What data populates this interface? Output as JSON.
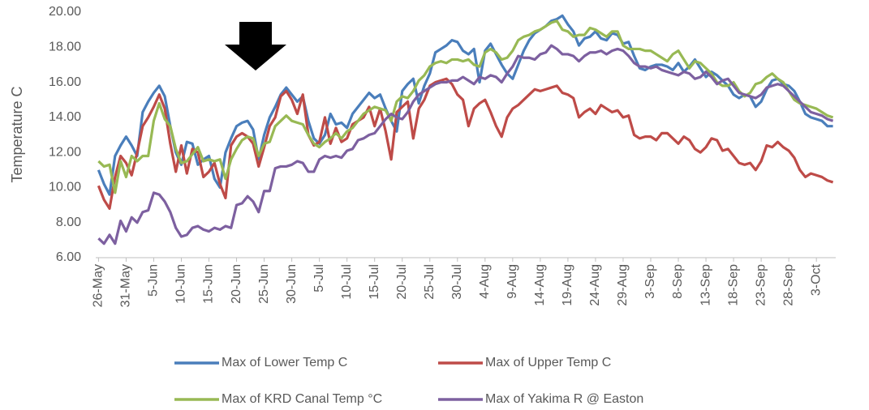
{
  "chart_data": {
    "type": "line",
    "y_label": "Temperature C",
    "categories": [
      "26-May",
      null,
      null,
      null,
      null,
      "31-May",
      null,
      null,
      null,
      null,
      "5-Jun",
      null,
      null,
      null,
      null,
      "10-Jun",
      null,
      null,
      null,
      null,
      "15-Jun",
      null,
      null,
      null,
      null,
      "20-Jun",
      null,
      null,
      null,
      null,
      "25-Jun",
      null,
      null,
      null,
      null,
      "30-Jun",
      null,
      null,
      null,
      null,
      "5-Jul",
      null,
      null,
      null,
      null,
      "10-Jul",
      null,
      null,
      null,
      null,
      "15-Jul",
      null,
      null,
      null,
      null,
      "20-Jul",
      null,
      null,
      null,
      null,
      "25-Jul",
      null,
      null,
      null,
      null,
      "30-Jul",
      null,
      null,
      null,
      null,
      "4-Aug",
      null,
      null,
      null,
      null,
      "9-Aug",
      null,
      null,
      null,
      null,
      "14-Aug",
      null,
      null,
      null,
      null,
      "19-Aug",
      null,
      null,
      null,
      null,
      "24-Aug",
      null,
      null,
      null,
      null,
      "29-Aug",
      null,
      null,
      null,
      null,
      "3-Sep",
      null,
      null,
      null,
      null,
      "8-Sep",
      null,
      null,
      null,
      null,
      "13-Sep",
      null,
      null,
      null,
      null,
      "18-Sep",
      null,
      null,
      null,
      null,
      "23-Sep",
      null,
      null,
      null,
      null,
      "28-Sep",
      null,
      null,
      null,
      null,
      "3-Oct",
      null,
      null,
      null
    ],
    "series": [
      {
        "name": "Max of Lower Temp C",
        "color": "#4a7ebb",
        "values": [
          11.0,
          10.2,
          9.6,
          11.8,
          12.4,
          12.9,
          12.4,
          11.8,
          14.3,
          14.9,
          15.4,
          15.8,
          15.2,
          13.5,
          12.0,
          11.3,
          12.6,
          12.5,
          11.3,
          11.6,
          11.8,
          10.5,
          10.0,
          12.0,
          12.8,
          13.5,
          13.7,
          13.8,
          13.3,
          11.6,
          13.0,
          14.0,
          14.6,
          15.3,
          15.7,
          15.3,
          14.9,
          15.2,
          13.8,
          12.8,
          12.5,
          13.0,
          14.2,
          13.6,
          13.7,
          13.4,
          14.2,
          14.6,
          15.0,
          15.4,
          15.1,
          15.3,
          14.5,
          13.8,
          13.2,
          15.5,
          15.9,
          16.2,
          14.8,
          15.8,
          16.5,
          17.7,
          17.9,
          18.1,
          18.4,
          18.3,
          17.8,
          17.6,
          17.9,
          16.0,
          17.8,
          18.2,
          17.6,
          17.0,
          16.5,
          16.2,
          17.0,
          17.8,
          18.4,
          18.8,
          19.0,
          19.2,
          19.5,
          19.6,
          19.8,
          19.3,
          18.9,
          18.1,
          18.5,
          18.6,
          18.9,
          18.5,
          18.4,
          18.8,
          18.7,
          18.2,
          18.3,
          17.5,
          16.8,
          16.7,
          16.9,
          17.0,
          17.0,
          16.9,
          16.7,
          17.1,
          16.6,
          16.9,
          17.3,
          16.8,
          16.3,
          16.6,
          16.4,
          16.1,
          15.8,
          15.3,
          15.1,
          15.3,
          15.2,
          14.6,
          14.9,
          15.6,
          16.1,
          16.2,
          15.9,
          15.8,
          15.5,
          14.9,
          14.2,
          14.0,
          13.9,
          13.8,
          13.5,
          13.5
        ]
      },
      {
        "name": "Max of Upper Temp C",
        "color": "#be4b48",
        "values": [
          10.1,
          9.3,
          8.8,
          10.6,
          11.8,
          11.4,
          10.7,
          12.0,
          13.5,
          14.0,
          14.6,
          15.3,
          14.5,
          12.5,
          10.9,
          12.4,
          10.8,
          12.2,
          12.0,
          10.6,
          10.9,
          11.4,
          10.2,
          9.4,
          12.4,
          12.9,
          13.1,
          12.9,
          12.5,
          11.2,
          12.3,
          13.5,
          14.0,
          15.2,
          15.5,
          15.0,
          14.2,
          15.3,
          13.0,
          12.4,
          12.6,
          14.0,
          12.5,
          13.4,
          12.6,
          12.8,
          13.6,
          13.8,
          14.0,
          14.6,
          13.5,
          14.5,
          13.2,
          11.6,
          14.3,
          14.6,
          14.9,
          12.8,
          14.5,
          15.0,
          15.8,
          16.0,
          16.1,
          16.2,
          15.9,
          15.3,
          15.0,
          13.5,
          14.5,
          14.8,
          15.0,
          14.3,
          13.5,
          12.9,
          14.0,
          14.5,
          14.7,
          15.0,
          15.3,
          15.6,
          15.5,
          15.6,
          15.7,
          15.8,
          15.4,
          15.3,
          15.1,
          14.0,
          14.3,
          14.5,
          14.2,
          14.7,
          14.5,
          14.3,
          14.4,
          14.0,
          14.1,
          13.0,
          12.8,
          12.9,
          12.9,
          12.7,
          13.1,
          13.1,
          12.8,
          12.5,
          12.9,
          12.7,
          12.2,
          12.0,
          12.3,
          12.8,
          12.7,
          12.1,
          12.2,
          11.8,
          11.4,
          11.3,
          11.4,
          11.0,
          11.5,
          12.4,
          12.3,
          12.6,
          12.3,
          12.1,
          11.7,
          11.0,
          10.6,
          10.8,
          10.7,
          10.6,
          10.4,
          10.3
        ]
      },
      {
        "name": "Max of KRD Canal Temp °C",
        "color": "#98b954",
        "values": [
          11.5,
          11.2,
          11.3,
          9.7,
          11.5,
          10.6,
          11.8,
          11.5,
          11.8,
          11.8,
          13.8,
          14.8,
          13.9,
          13.5,
          12.2,
          11.4,
          11.5,
          11.9,
          12.3,
          11.5,
          11.6,
          11.5,
          11.6,
          10.5,
          11.6,
          12.2,
          12.7,
          12.9,
          12.8,
          11.8,
          12.5,
          12.6,
          13.5,
          13.8,
          14.1,
          13.8,
          13.7,
          13.6,
          13.0,
          12.5,
          12.3,
          12.6,
          12.8,
          13.1,
          12.8,
          13.2,
          13.4,
          13.8,
          14.2,
          14.4,
          14.6,
          14.5,
          14.4,
          13.8,
          14.9,
          15.2,
          15.1,
          15.5,
          16.1,
          16.4,
          16.9,
          17.1,
          17.2,
          17.1,
          17.3,
          17.3,
          17.2,
          17.3,
          17.0,
          16.9,
          17.7,
          17.9,
          17.7,
          17.3,
          17.4,
          17.8,
          18.4,
          18.6,
          18.7,
          18.9,
          19.0,
          19.2,
          19.4,
          19.5,
          19.0,
          18.9,
          18.6,
          18.7,
          18.7,
          19.1,
          19.0,
          18.8,
          18.6,
          18.9,
          18.9,
          18.1,
          17.9,
          17.9,
          17.9,
          17.8,
          17.8,
          17.6,
          17.4,
          17.2,
          17.6,
          17.8,
          17.3,
          16.8,
          17.2,
          17.1,
          16.8,
          16.5,
          16.0,
          15.8,
          15.8,
          16.0,
          15.5,
          15.2,
          15.4,
          15.9,
          16.0,
          16.3,
          16.5,
          16.2,
          16.0,
          15.5,
          15.0,
          14.8,
          14.7,
          14.6,
          14.5,
          14.3,
          14.1,
          14.0
        ]
      },
      {
        "name": "Max of Yakima R @ Easton",
        "color": "#7d60a0",
        "values": [
          7.1,
          6.8,
          7.3,
          6.8,
          8.1,
          7.5,
          8.3,
          8.0,
          8.6,
          8.7,
          9.7,
          9.6,
          9.2,
          8.6,
          7.7,
          7.2,
          7.3,
          7.7,
          7.8,
          7.6,
          7.5,
          7.7,
          7.6,
          7.8,
          7.7,
          9.0,
          9.1,
          9.5,
          9.2,
          8.6,
          9.8,
          9.8,
          11.1,
          11.2,
          11.2,
          11.3,
          11.5,
          11.4,
          10.9,
          10.9,
          11.6,
          11.8,
          11.7,
          11.8,
          11.7,
          12.1,
          12.2,
          12.7,
          12.8,
          13.0,
          13.1,
          13.5,
          13.9,
          14.2,
          14.0,
          13.9,
          14.3,
          14.9,
          15.3,
          15.5,
          15.7,
          15.9,
          16.0,
          16.0,
          16.1,
          16.1,
          16.3,
          16.1,
          15.9,
          16.3,
          16.2,
          16.4,
          16.3,
          16.0,
          16.5,
          16.9,
          17.5,
          17.4,
          17.4,
          17.3,
          17.6,
          17.7,
          18.1,
          17.9,
          17.6,
          17.6,
          17.5,
          17.2,
          17.5,
          17.7,
          17.7,
          17.8,
          17.6,
          17.8,
          17.9,
          17.8,
          17.5,
          17.1,
          16.9,
          16.9,
          16.8,
          16.9,
          16.7,
          16.6,
          16.5,
          16.4,
          16.6,
          16.5,
          16.2,
          16.3,
          16.6,
          16.3,
          15.9,
          16.1,
          16.2,
          15.8,
          15.4,
          15.3,
          15.2,
          15.1,
          15.3,
          15.7,
          15.8,
          15.9,
          15.8,
          15.5,
          15.2,
          14.9,
          14.6,
          14.3,
          14.2,
          14.1,
          13.9,
          13.8
        ]
      }
    ],
    "ylim": [
      6,
      20
    ],
    "yticks": [
      {
        "value": 6,
        "label": "6.00"
      },
      {
        "value": 8,
        "label": "8.00"
      },
      {
        "value": 10,
        "label": "10.00"
      },
      {
        "value": 12,
        "label": "12.00"
      },
      {
        "value": 14,
        "label": "14.00"
      },
      {
        "value": 16,
        "label": "16.00"
      },
      {
        "value": 18,
        "label": "18.00"
      },
      {
        "value": 20,
        "label": "20.00"
      }
    ],
    "grid": false,
    "legend": "bottom"
  }
}
